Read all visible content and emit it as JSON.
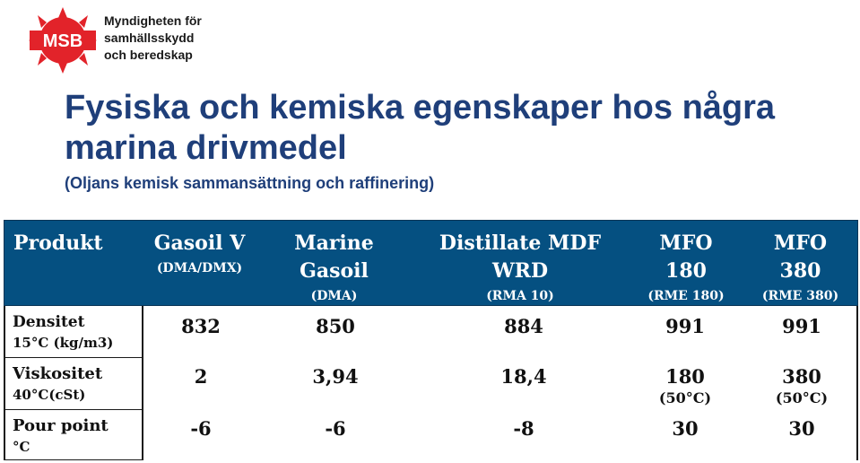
{
  "logo": {
    "mark": "MSB",
    "lines": [
      "Myndigheten för",
      "samhällsskydd",
      "och beredskap"
    ],
    "color": "#e2232a"
  },
  "title": "Fysiska och kemiska egenskaper hos några marina drivmedel",
  "subtitle": "(Oljans kemisk sammansättning och raffinering)",
  "colors": {
    "title": "#1f3f7a",
    "header_bg": "#055081"
  },
  "table": {
    "header": {
      "produkt": "Produkt",
      "gasoil_v": "Gasoil V",
      "gasoil_v_sub": "(DMA/DMX)",
      "marine_1": "Marine",
      "marine_2": "Gasoil",
      "marine_sub": "(DMA)",
      "dist_1": "Distillate MDF",
      "dist_2": "WRD",
      "dist_sub": "(RMA 10)",
      "mfo180_1": "MFO",
      "mfo180_2": "180",
      "mfo180_sub": "(RME 180)",
      "mfo380_1": "MFO",
      "mfo380_2": "380",
      "mfo380_sub": "(RME 380)"
    },
    "rows": [
      {
        "label": "Densitet",
        "sublabel": "15°C (kg/m3)",
        "v1": "832",
        "v2": "850",
        "v3": "884",
        "v4": "991",
        "v4sub": "",
        "v5": "991",
        "v5sub": ""
      },
      {
        "label": "Viskositet",
        "sublabel": "40°C(cSt)",
        "v1": "2",
        "v2": "3,94",
        "v3": "18,4",
        "v4": "180",
        "v4sub": "(50°C)",
        "v5": "380",
        "v5sub": "(50°C)"
      },
      {
        "label": "Pour point",
        "sublabel": "°C",
        "v1": "-6",
        "v2": "-6",
        "v3": "-8",
        "v4": "30",
        "v4sub": "",
        "v5": "30",
        "v5sub": ""
      }
    ]
  }
}
